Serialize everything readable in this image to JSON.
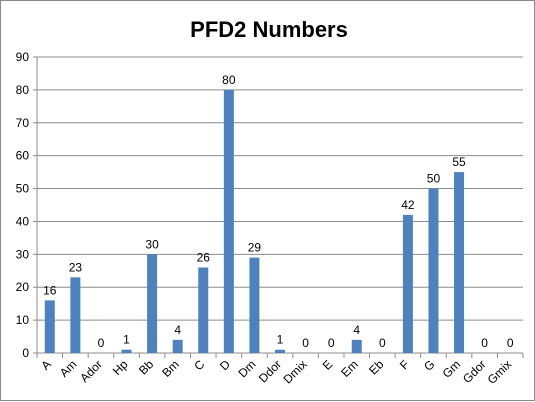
{
  "chart_data": {
    "type": "bar",
    "title": "PFD2 Numbers",
    "xlabel": "",
    "ylabel": "",
    "categories": [
      "A",
      "Am",
      "Ador",
      "Hp",
      "Bb",
      "Bm",
      "C",
      "D",
      "Dm",
      "Ddor",
      "Dmix",
      "E",
      "Em",
      "Eb",
      "F",
      "G",
      "Gm",
      "Gdor",
      "Gmix"
    ],
    "values": [
      16,
      23,
      0,
      1,
      30,
      4,
      26,
      80,
      29,
      1,
      0,
      0,
      4,
      0,
      42,
      50,
      55,
      0,
      0
    ],
    "ylim": [
      0,
      90
    ],
    "yticks": [
      0,
      10,
      20,
      30,
      40,
      50,
      60,
      70,
      80,
      90
    ],
    "grid": true,
    "legend": "none",
    "data_labels": true,
    "bar_color": "#4f81bd"
  }
}
